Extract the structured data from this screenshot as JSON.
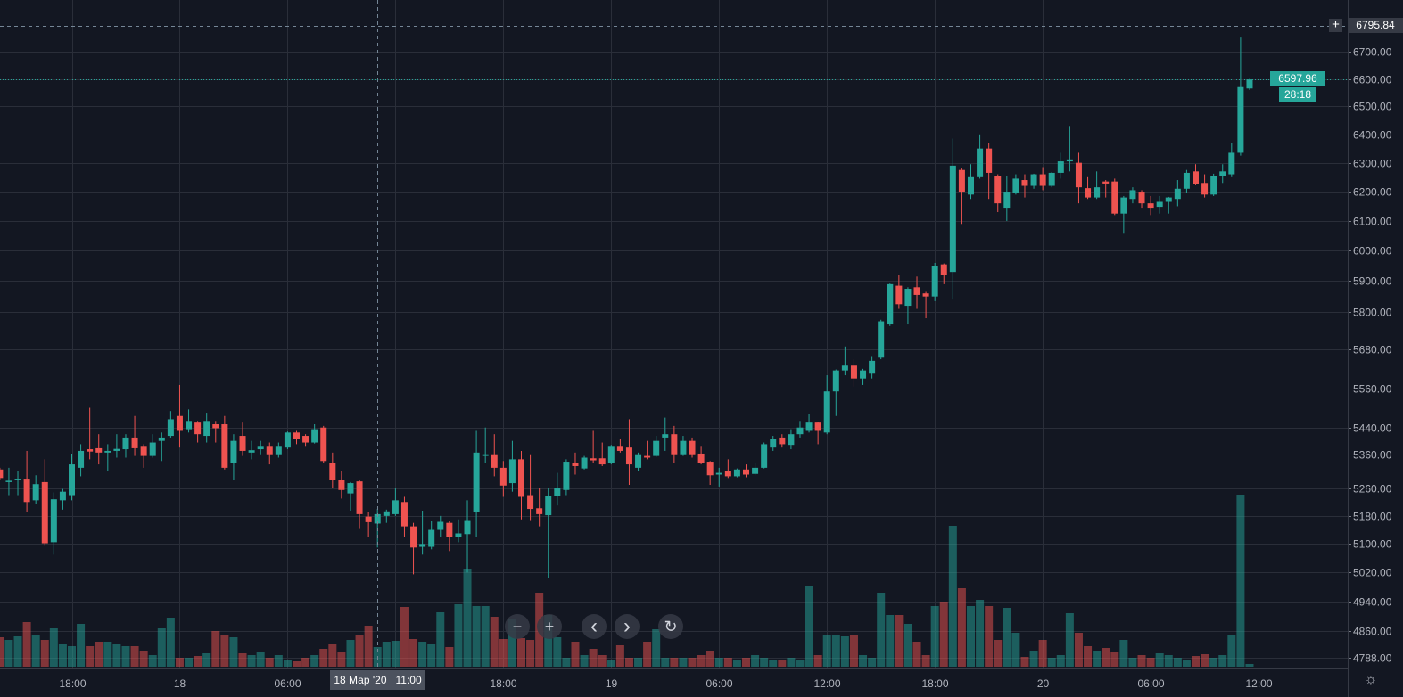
{
  "chart_data": {
    "type": "candlestick",
    "scale": "log",
    "ylim": [
      4760,
      6895
    ],
    "interval_note": "one candle per 30 minutes",
    "colors": {
      "up": "#26a69a",
      "down": "#ef5350",
      "background": "#131722",
      "grid": "#2a2e39"
    },
    "price_ticks": [
      "6700.00",
      "6600.00",
      "6500.00",
      "6400.00",
      "6300.00",
      "6200.00",
      "6100.00",
      "6000.00",
      "5900.00",
      "5800.00",
      "5680.00",
      "5560.00",
      "5440.00",
      "5360.00",
      "5260.00",
      "5180.00",
      "5100.00",
      "5020.00",
      "4940.00",
      "4860.00",
      "4788.00"
    ],
    "time_ticks": [
      {
        "label": "18:00",
        "candle": 0
      },
      {
        "label": "18",
        "candle": 12
      },
      {
        "label": "06:00",
        "candle": 24
      },
      {
        "label": "",
        "candle": 36
      },
      {
        "label": "18:00",
        "candle": 48
      },
      {
        "label": "19",
        "candle": 60
      },
      {
        "label": "06:00",
        "candle": 72
      },
      {
        "label": "12:00",
        "candle": 84
      },
      {
        "label": "18:00",
        "candle": 96
      },
      {
        "label": "20",
        "candle": 108
      },
      {
        "label": "06:00",
        "candle": 120
      },
      {
        "label": "12:00",
        "candle": 132
      }
    ],
    "first_candle_index": -8,
    "ohlc": [
      [
        5315,
        5320,
        5285,
        5290
      ],
      [
        5278,
        5320,
        5240,
        5282
      ],
      [
        5283,
        5310,
        5240,
        5288
      ],
      [
        5288,
        5370,
        5190,
        5220
      ],
      [
        5225,
        5298,
        5215,
        5272
      ],
      [
        5278,
        5345,
        5095,
        5102
      ],
      [
        5105,
        5248,
        5070,
        5228
      ],
      [
        5225,
        5258,
        5198,
        5250
      ],
      [
        5240,
        5362,
        5225,
        5330
      ],
      [
        5320,
        5390,
        5295,
        5370
      ],
      [
        5375,
        5500,
        5345,
        5368
      ],
      [
        5378,
        5420,
        5330,
        5365
      ],
      [
        5365,
        5390,
        5310,
        5370
      ],
      [
        5370,
        5420,
        5350,
        5376
      ],
      [
        5375,
        5420,
        5350,
        5410
      ],
      [
        5410,
        5475,
        5355,
        5378
      ],
      [
        5385,
        5390,
        5320,
        5355
      ],
      [
        5355,
        5420,
        5350,
        5395
      ],
      [
        5400,
        5425,
        5340,
        5410
      ],
      [
        5415,
        5490,
        5410,
        5465
      ],
      [
        5475,
        5570,
        5380,
        5430
      ],
      [
        5435,
        5495,
        5425,
        5460
      ],
      [
        5455,
        5460,
        5395,
        5420
      ],
      [
        5415,
        5485,
        5395,
        5460
      ],
      [
        5450,
        5460,
        5395,
        5438
      ],
      [
        5450,
        5475,
        5315,
        5320
      ],
      [
        5335,
        5420,
        5285,
        5400
      ],
      [
        5415,
        5455,
        5355,
        5370
      ],
      [
        5365,
        5400,
        5345,
        5372
      ],
      [
        5375,
        5400,
        5360,
        5385
      ],
      [
        5385,
        5395,
        5330,
        5360
      ],
      [
        5360,
        5395,
        5350,
        5385
      ],
      [
        5380,
        5428,
        5375,
        5425
      ],
      [
        5425,
        5430,
        5390,
        5405
      ],
      [
        5415,
        5420,
        5385,
        5395
      ],
      [
        5395,
        5450,
        5392,
        5435
      ],
      [
        5440,
        5445,
        5335,
        5340
      ],
      [
        5335,
        5365,
        5260,
        5285
      ],
      [
        5285,
        5310,
        5230,
        5255
      ],
      [
        5245,
        5278,
        5195,
        5275
      ],
      [
        5280,
        5285,
        5145,
        5185
      ],
      [
        5178,
        5190,
        5120,
        5162
      ],
      [
        5158,
        5200,
        5090,
        5185
      ],
      [
        5180,
        5198,
        5160,
        5193
      ],
      [
        5185,
        5262,
        5180,
        5225
      ],
      [
        5220,
        5235,
        5120,
        5150
      ],
      [
        5150,
        5160,
        5015,
        5090
      ],
      [
        5092,
        5195,
        5070,
        5100
      ],
      [
        5092,
        5165,
        5085,
        5140
      ],
      [
        5140,
        5180,
        5120,
        5163
      ],
      [
        5160,
        5165,
        5080,
        5120
      ],
      [
        5120,
        5170,
        5105,
        5130
      ],
      [
        5128,
        5225,
        5020,
        5168
      ],
      [
        5190,
        5430,
        5120,
        5365
      ],
      [
        5355,
        5440,
        5335,
        5360
      ],
      [
        5360,
        5420,
        5295,
        5320
      ],
      [
        5320,
        5340,
        5235,
        5268
      ],
      [
        5275,
        5400,
        5250,
        5345
      ],
      [
        5345,
        5370,
        5170,
        5235
      ],
      [
        5240,
        5360,
        5168,
        5200
      ],
      [
        5202,
        5260,
        5150,
        5185
      ],
      [
        5182,
        5262,
        5005,
        5237
      ],
      [
        5237,
        5305,
        5210,
        5262
      ],
      [
        5255,
        5345,
        5240,
        5338
      ],
      [
        5335,
        5365,
        5300,
        5325
      ],
      [
        5318,
        5355,
        5315,
        5350
      ],
      [
        5348,
        5430,
        5335,
        5342
      ],
      [
        5348,
        5395,
        5325,
        5330
      ],
      [
        5335,
        5388,
        5330,
        5385
      ],
      [
        5385,
        5405,
        5365,
        5370
      ],
      [
        5380,
        5465,
        5270,
        5330
      ],
      [
        5320,
        5365,
        5310,
        5360
      ],
      [
        5355,
        5400,
        5345,
        5350
      ],
      [
        5355,
        5415,
        5352,
        5400
      ],
      [
        5410,
        5470,
        5370,
        5420
      ],
      [
        5420,
        5445,
        5335,
        5360
      ],
      [
        5360,
        5415,
        5355,
        5400
      ],
      [
        5400,
        5410,
        5350,
        5360
      ],
      [
        5362,
        5385,
        5330,
        5335
      ],
      [
        5338,
        5340,
        5270,
        5298
      ],
      [
        5300,
        5320,
        5265,
        5305
      ],
      [
        5310,
        5345,
        5290,
        5295
      ],
      [
        5295,
        5318,
        5292,
        5315
      ],
      [
        5315,
        5330,
        5292,
        5300
      ],
      [
        5302,
        5335,
        5298,
        5320
      ],
      [
        5320,
        5395,
        5318,
        5390
      ],
      [
        5380,
        5415,
        5370,
        5405
      ],
      [
        5410,
        5420,
        5380,
        5390
      ],
      [
        5388,
        5435,
        5375,
        5420
      ],
      [
        5420,
        5460,
        5410,
        5440
      ],
      [
        5430,
        5480,
        5425,
        5455
      ],
      [
        5455,
        5458,
        5390,
        5430
      ],
      [
        5425,
        5600,
        5420,
        5550
      ],
      [
        5550,
        5618,
        5475,
        5615
      ],
      [
        5615,
        5690,
        5600,
        5630
      ],
      [
        5630,
        5650,
        5565,
        5590
      ],
      [
        5590,
        5620,
        5570,
        5615
      ],
      [
        5605,
        5660,
        5590,
        5645
      ],
      [
        5655,
        5775,
        5650,
        5770
      ],
      [
        5760,
        5892,
        5755,
        5890
      ],
      [
        5885,
        5920,
        5810,
        5825
      ],
      [
        5820,
        5880,
        5760,
        5875
      ],
      [
        5880,
        5915,
        5810,
        5855
      ],
      [
        5860,
        5865,
        5780,
        5850
      ],
      [
        5850,
        5960,
        5835,
        5950
      ],
      [
        5955,
        5958,
        5890,
        5920
      ],
      [
        5930,
        6385,
        5840,
        6290
      ],
      [
        6275,
        6280,
        6090,
        6200
      ],
      [
        6190,
        6295,
        6175,
        6250
      ],
      [
        6250,
        6400,
        6245,
        6350
      ],
      [
        6350,
        6370,
        6175,
        6265
      ],
      [
        6255,
        6260,
        6130,
        6160
      ],
      [
        6145,
        6255,
        6100,
        6200
      ],
      [
        6195,
        6260,
        6190,
        6245
      ],
      [
        6240,
        6260,
        6180,
        6220
      ],
      [
        6220,
        6262,
        6210,
        6260
      ],
      [
        6260,
        6285,
        6205,
        6220
      ],
      [
        6220,
        6268,
        6215,
        6265
      ],
      [
        6265,
        6335,
        6245,
        6305
      ],
      [
        6305,
        6430,
        6270,
        6312
      ],
      [
        6300,
        6335,
        6160,
        6215
      ],
      [
        6212,
        6250,
        6175,
        6180
      ],
      [
        6180,
        6270,
        6175,
        6215
      ],
      [
        6235,
        6240,
        6180,
        6228
      ],
      [
        6235,
        6245,
        6120,
        6125
      ],
      [
        6125,
        6185,
        6060,
        6180
      ],
      [
        6175,
        6215,
        6160,
        6205
      ],
      [
        6200,
        6205,
        6145,
        6160
      ],
      [
        6160,
        6185,
        6120,
        6145
      ],
      [
        6148,
        6185,
        6125,
        6165
      ],
      [
        6165,
        6182,
        6125,
        6180
      ],
      [
        6175,
        6240,
        6150,
        6210
      ],
      [
        6210,
        6275,
        6195,
        6265
      ],
      [
        6270,
        6295,
        6222,
        6225
      ],
      [
        6230,
        6260,
        6180,
        6190
      ],
      [
        6190,
        6262,
        6185,
        6255
      ],
      [
        6255,
        6295,
        6230,
        6270
      ],
      [
        6260,
        6370,
        6250,
        6335
      ],
      [
        6335,
        6753,
        6325,
        6570
      ],
      [
        6565,
        6600,
        6560,
        6598
      ]
    ],
    "volume": [
      33,
      30,
      34,
      50,
      36,
      30,
      43,
      26,
      23,
      48,
      23,
      28,
      28,
      26,
      23,
      23,
      18,
      13,
      43,
      55,
      10,
      10,
      12,
      15,
      40,
      36,
      33,
      15,
      13,
      16,
      10,
      13,
      8,
      6,
      10,
      13,
      20,
      26,
      17,
      30,
      36,
      46,
      22,
      28,
      29,
      67,
      31,
      28,
      25,
      61,
      22,
      70,
      110,
      68,
      68,
      56,
      31,
      54,
      32,
      30,
      83,
      58,
      33,
      10,
      28,
      13,
      20,
      13,
      8,
      24,
      10,
      10,
      28,
      42,
      10,
      10,
      10,
      10,
      13,
      18,
      10,
      10,
      8,
      10,
      13,
      10,
      8,
      8,
      10,
      8,
      90,
      13,
      36,
      36,
      34,
      36,
      13,
      10,
      83,
      58,
      58,
      48,
      28,
      13,
      68,
      73,
      158,
      88,
      68,
      75,
      68,
      30,
      66,
      38,
      11,
      18,
      30,
      10,
      13,
      60,
      38,
      23,
      18,
      21,
      16,
      30,
      10,
      13,
      10,
      15,
      13,
      10,
      8,
      12,
      14,
      10,
      13,
      36,
      193,
      3
    ]
  },
  "overlay": {
    "crosshair_price": "6795.84",
    "crosshair_time": "18 Мар '20   11:00",
    "last_price": "6597.96",
    "countdown": "28:18",
    "plus_label": "+"
  },
  "controls": {
    "zoom_out": "−",
    "zoom_in": "+",
    "scroll_left": "‹",
    "scroll_right": "›",
    "reset": "↻",
    "settings": "☼"
  }
}
